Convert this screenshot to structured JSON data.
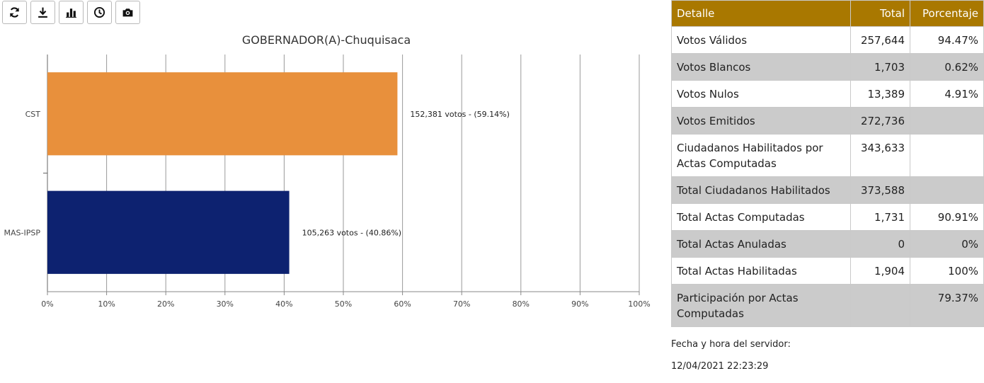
{
  "toolbar": {
    "buttons": [
      {
        "icon": "refresh-icon"
      },
      {
        "icon": "download-icon"
      },
      {
        "icon": "bar-chart-icon"
      },
      {
        "icon": "clock-icon"
      },
      {
        "icon": "camera-icon"
      }
    ]
  },
  "chart_data": {
    "type": "bar",
    "orientation": "horizontal",
    "title": "GOBERNADOR(A)-Chuquisaca",
    "categories": [
      "CST",
      "MAS-IPSP"
    ],
    "values": [
      59.14,
      40.86
    ],
    "votes": [
      152381,
      105263
    ],
    "data_labels": [
      "152,381 votos - (59.14%)",
      "105,263 votos - (40.86%)"
    ],
    "colors": [
      "#e8903c",
      "#0d2270"
    ],
    "xlim": [
      0,
      100
    ],
    "xticks": [
      "0%",
      "10%",
      "20%",
      "30%",
      "40%",
      "50%",
      "60%",
      "70%",
      "80%",
      "90%",
      "100%"
    ],
    "grid": true
  },
  "table": {
    "headers": {
      "detalle": "Detalle",
      "total": "Total",
      "porcentaje": "Porcentaje"
    },
    "rows": [
      {
        "detalle": "Votos Válidos",
        "total": "257,644",
        "porcentaje": "94.47%"
      },
      {
        "detalle": "Votos Blancos",
        "total": "1,703",
        "porcentaje": "0.62%"
      },
      {
        "detalle": "Votos Nulos",
        "total": "13,389",
        "porcentaje": "4.91%"
      },
      {
        "detalle": "Votos Emitidos",
        "total": "272,736",
        "porcentaje": ""
      },
      {
        "detalle": "Ciudadanos Habilitados por Actas Computadas",
        "total": "343,633",
        "porcentaje": ""
      },
      {
        "detalle": "Total Ciudadanos Habilitados",
        "total": "373,588",
        "porcentaje": ""
      },
      {
        "detalle": "Total Actas Computadas",
        "total": "1,731",
        "porcentaje": "90.91%"
      },
      {
        "detalle": "Total Actas Anuladas",
        "total": "0",
        "porcentaje": "0%"
      },
      {
        "detalle": "Total Actas Habilitadas",
        "total": "1,904",
        "porcentaje": "100%"
      },
      {
        "detalle": "Participación por Actas Computadas",
        "total": "",
        "porcentaje": "79.37%"
      }
    ]
  },
  "server": {
    "label": "Fecha y hora del servidor:",
    "datetime": "12/04/2021 22:23:29"
  }
}
